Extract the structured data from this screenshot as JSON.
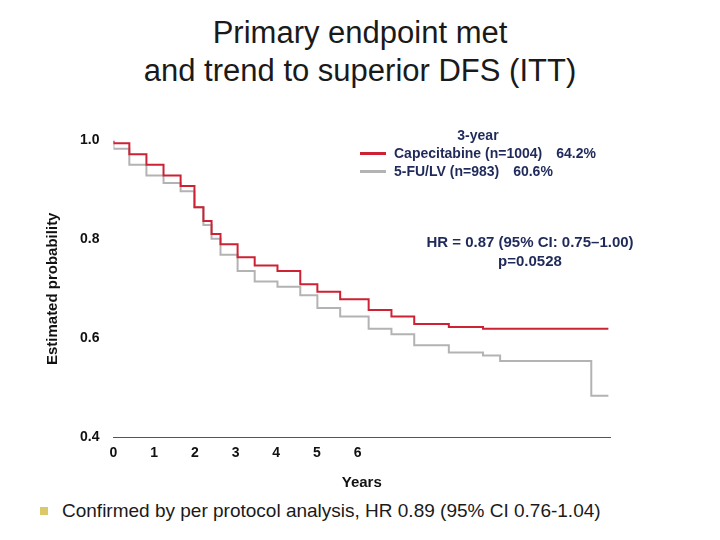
{
  "chart_data": {
    "type": "line",
    "title": [
      "Primary endpoint met",
      "and trend to superior DFS (ITT)"
    ],
    "x_label": "Years",
    "y_label": "Estimated probability",
    "xlim": [
      0,
      12.2
    ],
    "xticks": [
      0,
      1,
      2,
      3,
      4,
      5,
      6
    ],
    "ylim": [
      0.4,
      1.0
    ],
    "yticks": [
      {
        "value": 0.4,
        "label": "0.4"
      },
      {
        "value": 0.6,
        "label": "0.6"
      },
      {
        "value": 0.8,
        "label": "0.8"
      },
      {
        "value": 1.0,
        "label": "1.0"
      }
    ],
    "grid": false,
    "legend": "upper right",
    "legend_title": "3-year",
    "series": [
      {
        "name": "Capecitabine (n=1004)",
        "color": "#cc2233",
        "line_style": "step",
        "marker": "none",
        "three_year": {
          "value": 64.2,
          "label": "64.2%"
        },
        "x": [
          0,
          0.39,
          0.81,
          1.23,
          1.65,
          1.99,
          2.21,
          2.41,
          2.63,
          3.05,
          3.47,
          4.03,
          4.59,
          5.01,
          5.57,
          6.27,
          6.83,
          7.39,
          8.24,
          9.08,
          9.5,
          12.16
        ],
        "values": [
          1.0,
          0.994,
          0.972,
          0.951,
          0.929,
          0.908,
          0.865,
          0.837,
          0.811,
          0.79,
          0.764,
          0.747,
          0.736,
          0.709,
          0.694,
          0.679,
          0.657,
          0.644,
          0.629,
          0.623,
          0.619,
          0.619
        ]
      },
      {
        "name": "5-FU/LV (n=983)",
        "color": "#b3b3b3",
        "line_style": "step",
        "marker": "none",
        "three_year": {
          "value": 60.6,
          "label": "60.6%"
        },
        "x": [
          0,
          0.39,
          0.81,
          1.23,
          1.65,
          1.99,
          2.21,
          2.41,
          2.63,
          3.05,
          3.47,
          4.03,
          4.59,
          5.01,
          5.57,
          6.27,
          6.83,
          7.39,
          8.24,
          9.08,
          9.5,
          11.74,
          11.74,
          12.16
        ],
        "values": [
          1.0,
          0.983,
          0.951,
          0.929,
          0.914,
          0.897,
          0.865,
          0.829,
          0.801,
          0.769,
          0.736,
          0.715,
          0.704,
          0.687,
          0.661,
          0.644,
          0.619,
          0.608,
          0.586,
          0.571,
          0.565,
          0.554,
          0.484,
          0.484
        ]
      }
    ],
    "annotations": [
      "HR = 0.87 (95% CI: 0.75–1.00)",
      "p=0.0528"
    ],
    "footnote": "Confirmed by per protocol analysis, HR 0.89 (95% CI 0.76-1.04)"
  }
}
